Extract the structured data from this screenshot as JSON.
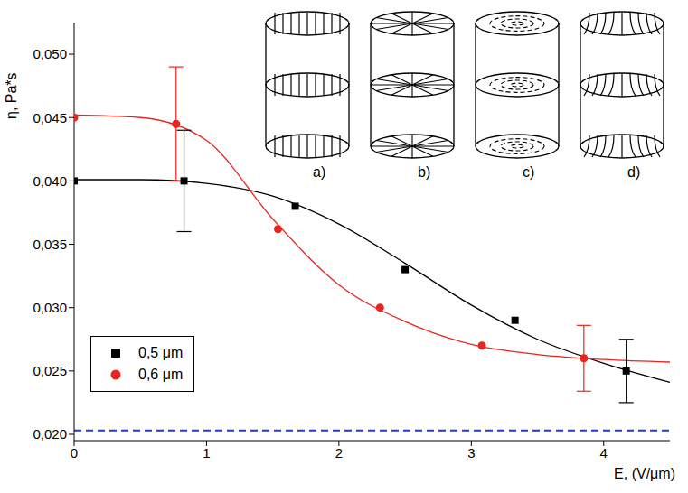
{
  "chart_data": {
    "type": "scatter",
    "xlabel": "E, (V/μm)",
    "ylabel": "η, Pa*s",
    "xlim": [
      0,
      4.5
    ],
    "xticks": [
      0,
      1,
      2,
      3,
      4
    ],
    "ylim": [
      0.0195,
      0.0525
    ],
    "yticks": [
      {
        "value": 0.02,
        "label": "0,020"
      },
      {
        "value": 0.025,
        "label": "0,025"
      },
      {
        "value": 0.03,
        "label": "0,030"
      },
      {
        "value": 0.035,
        "label": "0,035"
      },
      {
        "value": 0.04,
        "label": "0,040"
      },
      {
        "value": 0.045,
        "label": "0,045"
      },
      {
        "value": 0.05,
        "label": "0,050"
      }
    ],
    "grid": false,
    "legend": "lower left",
    "insets": [
      "a)",
      "b)",
      "c)",
      "d)"
    ],
    "reference_line": {
      "value": 0.0203,
      "color": "#1f3fbf",
      "line_style": "dashed"
    },
    "series": [
      {
        "name": "0,5 μm",
        "color": "#000000",
        "marker": "square",
        "x": [
          0,
          0.83,
          1.67,
          2.5,
          3.33,
          4.17
        ],
        "values": [
          0.04,
          0.04,
          0.038,
          0.033,
          0.029,
          0.025
        ],
        "errors": [
          null,
          0.004,
          null,
          null,
          null,
          0.0025
        ],
        "fit_x": [
          0,
          0.5,
          1,
          1.5,
          2,
          2.5,
          3,
          3.5,
          4,
          4.5
        ],
        "fit_values": [
          0.0401,
          0.0401,
          0.0398,
          0.0388,
          0.0366,
          0.0335,
          0.0302,
          0.0275,
          0.0256,
          0.0241
        ]
      },
      {
        "name": "0,6 μm",
        "color": "#e8251f",
        "marker": "circle",
        "x": [
          0,
          0.77,
          1.54,
          2.31,
          3.08,
          3.85
        ],
        "values": [
          0.045,
          0.0445,
          0.0362,
          0.03,
          0.027,
          0.026
        ],
        "errors": [
          null,
          0.0045,
          null,
          null,
          null,
          0.0026
        ],
        "fit_x": [
          0,
          0.5,
          1,
          1.5,
          2,
          2.5,
          3,
          3.5,
          4,
          4.5
        ],
        "fit_values": [
          0.0452,
          0.045,
          0.0432,
          0.037,
          0.0318,
          0.0289,
          0.0271,
          0.0263,
          0.0259,
          0.0257
        ]
      }
    ]
  }
}
